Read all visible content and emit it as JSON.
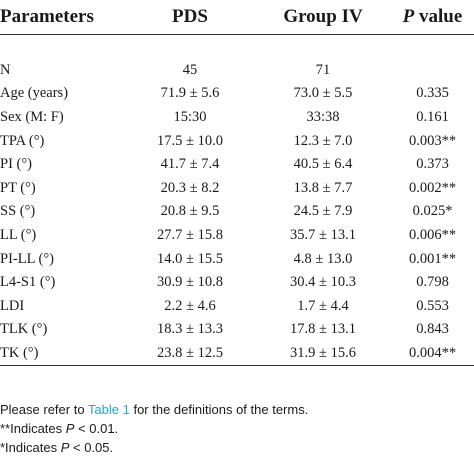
{
  "headers": {
    "parameters": "Parameters",
    "pds": "PDS",
    "group": "Group IV",
    "p_letter": "P",
    "p_word": "value"
  },
  "rows": [
    {
      "param": "N",
      "pds": "45",
      "group": "71",
      "p": ""
    },
    {
      "param": "Age (years)",
      "pds": "71.9 ± 5.6",
      "group": "73.0 ± 5.5",
      "p": "0.335"
    },
    {
      "param": "Sex (M: F)",
      "pds": "15:30",
      "group": "33:38",
      "p": "0.161"
    },
    {
      "param": "TPA (°)",
      "pds": "17.5 ± 10.0",
      "group": "12.3 ± 7.0",
      "p": "0.003**"
    },
    {
      "param": "PI (°)",
      "pds": "41.7 ± 7.4",
      "group": "40.5 ± 6.4",
      "p": "0.373"
    },
    {
      "param": "PT (°)",
      "pds": "20.3 ± 8.2",
      "group": "13.8 ± 7.7",
      "p": "0.002**"
    },
    {
      "param": "SS (°)",
      "pds": "20.8 ± 9.5",
      "group": "24.5 ± 7.9",
      "p": "0.025*"
    },
    {
      "param": "LL (°)",
      "pds": "27.7 ± 15.8",
      "group": "35.7 ± 13.1",
      "p": "0.006**"
    },
    {
      "param": "PI-LL (°)",
      "pds": "14.0 ± 15.5",
      "group": "4.8 ± 13.0",
      "p": "0.001**"
    },
    {
      "param": "L4-S1 (°)",
      "pds": "30.9 ± 10.8",
      "group": "30.4 ± 10.3",
      "p": "0.798"
    },
    {
      "param": "LDI",
      "pds": "2.2 ± 4.6",
      "group": "1.7 ± 4.4",
      "p": "0.553"
    },
    {
      "param": "TLK (°)",
      "pds": "18.3 ± 13.3",
      "group": "17.8 ± 13.1",
      "p": "0.843"
    },
    {
      "param": "TK (°)",
      "pds": "23.8 ± 12.5",
      "group": "31.9 ± 15.6",
      "p": "0.004**"
    }
  ],
  "notes": {
    "refer_pre": "Please refer to ",
    "refer_link": "Table 1",
    "refer_post": " for the definitions of the terms.",
    "n1_pre": "**Indicates ",
    "n1_p": "P",
    "n1_post": " < 0.01.",
    "n2_pre": "*Indicates ",
    "n2_p": "P",
    "n2_post": " < 0.05."
  },
  "colors": {
    "link": "#2aa6c9",
    "text": "#1a1a1a"
  }
}
